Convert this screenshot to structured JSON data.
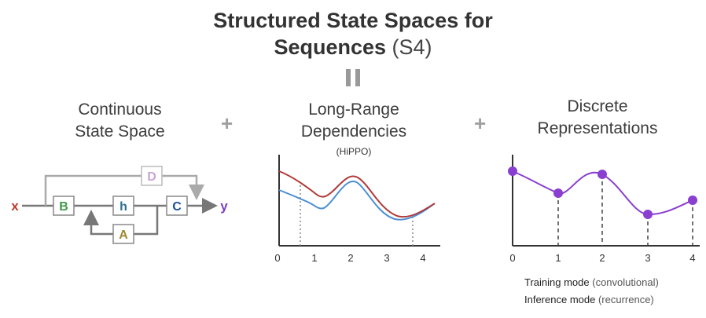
{
  "title": {
    "line1": "Structured State Spaces for",
    "line2_bold": "Sequences",
    "line2_light": "(S4)"
  },
  "equals_symbol": "||",
  "plus_symbol": "+",
  "panel1": {
    "heading_line1": "Continuous",
    "heading_line2": "State Space",
    "input": "x",
    "output": "y",
    "blocks": {
      "b": "B",
      "h": "h",
      "c": "C",
      "a": "A",
      "d": "D"
    },
    "colors": {
      "x": "#c0392b",
      "y": "#7b3fc4",
      "b": "#3f9a46",
      "c": "#1f4fa0",
      "a": "#a08a2e",
      "d": "#c9a6d6",
      "h": "#2f6f8f"
    }
  },
  "panel2": {
    "heading_line1": "Long-Range",
    "heading_line2": "Dependencies",
    "subtitle": "(HiPPO)",
    "ticks": [
      "0",
      "1",
      "2",
      "3",
      "4"
    ],
    "colors": {
      "red_line": "#b03a3a",
      "blue_line": "#4a8fd4"
    }
  },
  "panel3": {
    "heading_line1": "Discrete",
    "heading_line2": "Representations",
    "ticks": [
      "0",
      "1",
      "2",
      "3",
      "4"
    ],
    "points_x": [
      0,
      1,
      2,
      3,
      4
    ],
    "color": "#8a3fd0"
  },
  "captions": {
    "training_bold": "Training mode",
    "training_light": "(convolutional)",
    "inference_bold": "Inference mode",
    "inference_light": "(recurrence)"
  }
}
